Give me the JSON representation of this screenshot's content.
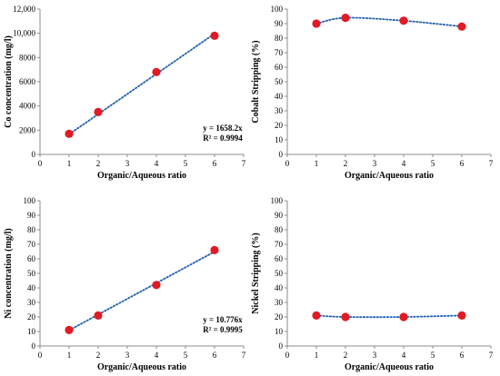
{
  "chart_data": [
    {
      "type": "scatter",
      "xlabel": "Organic/Aqueous ratio",
      "ylabel": "Co concentration (mg/l)",
      "xlim": [
        0,
        7
      ],
      "ylim": [
        0,
        12000
      ],
      "xticks": [
        "0",
        "1",
        "2",
        "3",
        "4",
        "5",
        "6",
        "7"
      ],
      "yticks": [
        "0",
        "2000",
        "4000",
        "6000",
        "8000",
        "10,000",
        "12,000"
      ],
      "x": [
        1,
        2,
        4,
        6
      ],
      "y": [
        1700,
        3500,
        6800,
        9800
      ],
      "trendline": {
        "kind": "linear",
        "equation": "y = 1658.2x",
        "r2": "R² = 0.9994"
      },
      "marker_color": "#e01b24",
      "trend_color": "#1f5fb4",
      "grid": false
    },
    {
      "type": "scatter",
      "xlabel": "Organic/Aqueous ratio",
      "ylabel": "Cobalt Stripping (%)",
      "xlim": [
        0,
        7
      ],
      "ylim": [
        0,
        100
      ],
      "xticks": [
        "0",
        "1",
        "2",
        "3",
        "4",
        "5",
        "6",
        "7"
      ],
      "yticks": [
        "0",
        "10",
        "20",
        "30",
        "40",
        "50",
        "60",
        "70",
        "80",
        "90",
        "100"
      ],
      "x": [
        1,
        2,
        4,
        6
      ],
      "y": [
        90,
        94,
        92,
        88
      ],
      "trendline": {
        "kind": "smooth"
      },
      "marker_color": "#e01b24",
      "trend_color": "#1f5fb4",
      "grid": false
    },
    {
      "type": "scatter",
      "xlabel": "Organic/Aqueous ratio",
      "ylabel": "Ni concentration (mg/l)",
      "xlim": [
        0,
        7
      ],
      "ylim": [
        0,
        100
      ],
      "xticks": [
        "0",
        "1",
        "2",
        "3",
        "4",
        "5",
        "6",
        "7"
      ],
      "yticks": [
        "0",
        "10",
        "20",
        "30",
        "40",
        "50",
        "60",
        "70",
        "80",
        "90",
        "100"
      ],
      "x": [
        1,
        2,
        4,
        6
      ],
      "y": [
        11,
        21,
        42,
        66
      ],
      "trendline": {
        "kind": "linear",
        "equation": "y = 10.776x",
        "r2": "R² = 0.9995"
      },
      "marker_color": "#e01b24",
      "trend_color": "#1f5fb4",
      "grid": false
    },
    {
      "type": "scatter",
      "xlabel": "Organic/Aqueous ratio",
      "ylabel": "Nickel Stripping (%)",
      "xlim": [
        0,
        7
      ],
      "ylim": [
        0,
        100
      ],
      "xticks": [
        "0",
        "1",
        "2",
        "3",
        "4",
        "5",
        "6",
        "7"
      ],
      "yticks": [
        "0",
        "10",
        "20",
        "30",
        "40",
        "50",
        "60",
        "70",
        "80",
        "90",
        "100"
      ],
      "x": [
        1,
        2,
        4,
        6
      ],
      "y": [
        21,
        20,
        20,
        21
      ],
      "trendline": {
        "kind": "smooth"
      },
      "marker_color": "#e01b24",
      "trend_color": "#1f5fb4",
      "grid": false
    }
  ]
}
